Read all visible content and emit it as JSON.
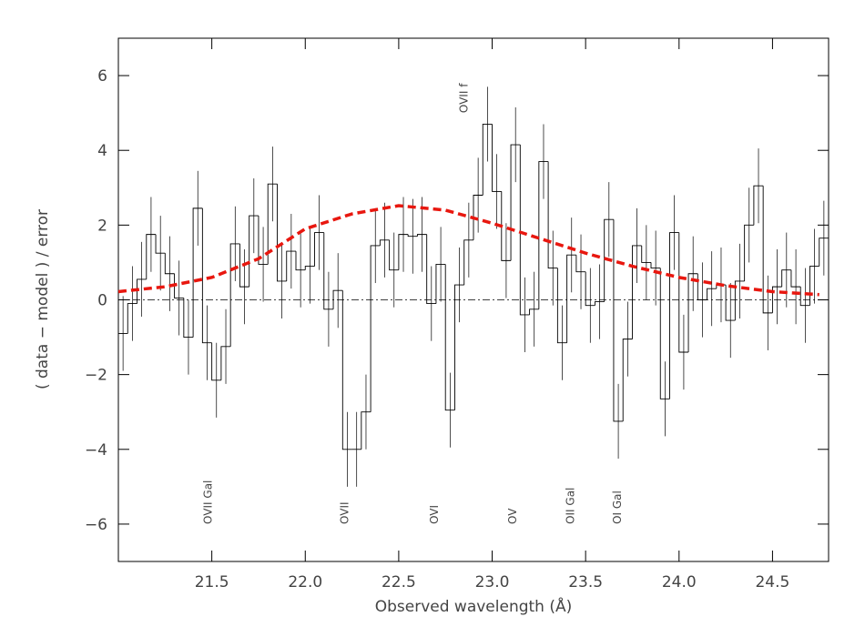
{
  "chart_data": {
    "type": "step-histogram",
    "xlabel": "Observed wavelength (Å)",
    "ylabel": "( data − model ) / error",
    "xlim": [
      21.0,
      24.8
    ],
    "ylim": [
      -7,
      7
    ],
    "xticks": [
      21.5,
      {
        "value": 22,
        "label": "22.0"
      },
      22.5,
      {
        "value": 23,
        "label": "23.0"
      },
      23.5,
      {
        "value": 24,
        "label": "24.0"
      },
      24.5
    ],
    "yticks": [
      {
        "value": -6,
        "label": "−6"
      },
      {
        "value": -4,
        "label": "−4"
      },
      {
        "value": -2,
        "label": "−2"
      },
      0,
      2,
      4,
      6
    ],
    "bins": [
      21.0,
      21.05,
      21.1,
      21.15,
      21.2,
      21.25,
      21.3,
      21.35,
      21.4,
      21.45,
      21.5,
      21.55,
      21.6,
      21.65,
      21.7,
      21.75,
      21.8,
      21.85,
      21.9,
      21.95,
      22.0,
      22.05,
      22.1,
      22.15,
      22.2,
      22.25,
      22.3,
      22.35,
      22.4,
      22.45,
      22.5,
      22.55,
      22.6,
      22.65,
      22.7,
      22.75,
      22.8,
      22.85,
      22.9,
      22.95,
      23.0,
      23.05,
      23.1,
      23.15,
      23.2,
      23.25,
      23.3,
      23.35,
      23.4,
      23.45,
      23.5,
      23.55,
      23.6,
      23.65,
      23.7,
      23.75,
      23.8,
      23.85,
      23.9,
      23.95,
      24.0,
      24.05,
      24.1,
      24.15,
      24.2,
      24.25,
      24.3,
      24.35,
      24.4,
      24.45,
      24.5,
      24.55,
      24.6,
      24.65,
      24.7,
      24.75,
      24.8
    ],
    "values": [
      -0.9,
      -0.1,
      0.55,
      1.75,
      1.25,
      0.7,
      0.05,
      -1.0,
      2.45,
      -1.15,
      -2.15,
      -1.25,
      1.5,
      0.35,
      2.25,
      0.95,
      3.1,
      0.5,
      1.3,
      0.8,
      0.9,
      1.8,
      -0.25,
      0.25,
      -4.0,
      -4.0,
      -3.0,
      1.45,
      1.6,
      0.8,
      1.75,
      1.7,
      1.75,
      -0.1,
      0.95,
      -2.95,
      0.4,
      1.6,
      2.8,
      4.7,
      2.9,
      1.05,
      4.15,
      -0.4,
      -0.25,
      3.7,
      0.85,
      -1.15,
      1.2,
      0.75,
      -0.15,
      -0.05,
      2.15,
      -3.25,
      -1.05,
      1.45,
      1.0,
      0.85,
      -2.65,
      1.8,
      -1.4,
      0.7,
      0.0,
      0.3,
      0.4,
      -0.55,
      0.5,
      2.0,
      3.05,
      -0.35,
      0.35,
      0.8,
      0.35,
      -0.15,
      0.9,
      1.65
    ],
    "errors": [
      1.0,
      1.0,
      1.0,
      1.0,
      1.0,
      1.0,
      1.0,
      1.0,
      1.0,
      1.0,
      1.0,
      1.0,
      1.0,
      1.0,
      1.0,
      1.0,
      1.0,
      1.0,
      1.0,
      1.0,
      1.0,
      1.0,
      1.0,
      1.0,
      1.0,
      1.0,
      1.0,
      1.0,
      1.0,
      1.0,
      1.0,
      1.0,
      1.0,
      1.0,
      1.0,
      1.0,
      1.0,
      1.0,
      1.0,
      1.0,
      1.0,
      1.0,
      1.0,
      1.0,
      1.0,
      1.0,
      1.0,
      1.0,
      1.0,
      1.0,
      1.0,
      1.0,
      1.0,
      1.0,
      1.0,
      1.0,
      1.0,
      1.0,
      1.0,
      1.0,
      1.0,
      1.0,
      1.0,
      1.0,
      1.0,
      1.0,
      1.0,
      1.0,
      1.0,
      1.0,
      1.0,
      1.0,
      1.0,
      1.0,
      1.0,
      1.0
    ],
    "color": "#000000",
    "model": {
      "color": "#e8170f",
      "x": [
        21.0,
        21.25,
        21.5,
        21.75,
        22.0,
        22.25,
        22.5,
        22.75,
        23.0,
        23.25,
        23.5,
        23.75,
        24.0,
        24.25,
        24.5,
        24.75
      ],
      "values": [
        0.22,
        0.35,
        0.6,
        1.1,
        1.9,
        2.3,
        2.52,
        2.4,
        2.05,
        1.65,
        1.25,
        0.9,
        0.6,
        0.38,
        0.22,
        0.14
      ]
    },
    "hline": 0,
    "annotations": [
      {
        "text": "OVII Gal",
        "x": 21.48,
        "y": -6.0
      },
      {
        "text": "OVII",
        "x": 22.21,
        "y": -6.0
      },
      {
        "text": "OVI",
        "x": 22.69,
        "y": -6.0
      },
      {
        "text": "OV",
        "x": 23.11,
        "y": -6.0
      },
      {
        "text": "OII Gal",
        "x": 23.42,
        "y": -6.0
      },
      {
        "text": "OI Gal",
        "x": 23.67,
        "y": -6.0
      },
      {
        "text": "OVII f",
        "x": 22.85,
        "y": 5.0
      }
    ]
  }
}
